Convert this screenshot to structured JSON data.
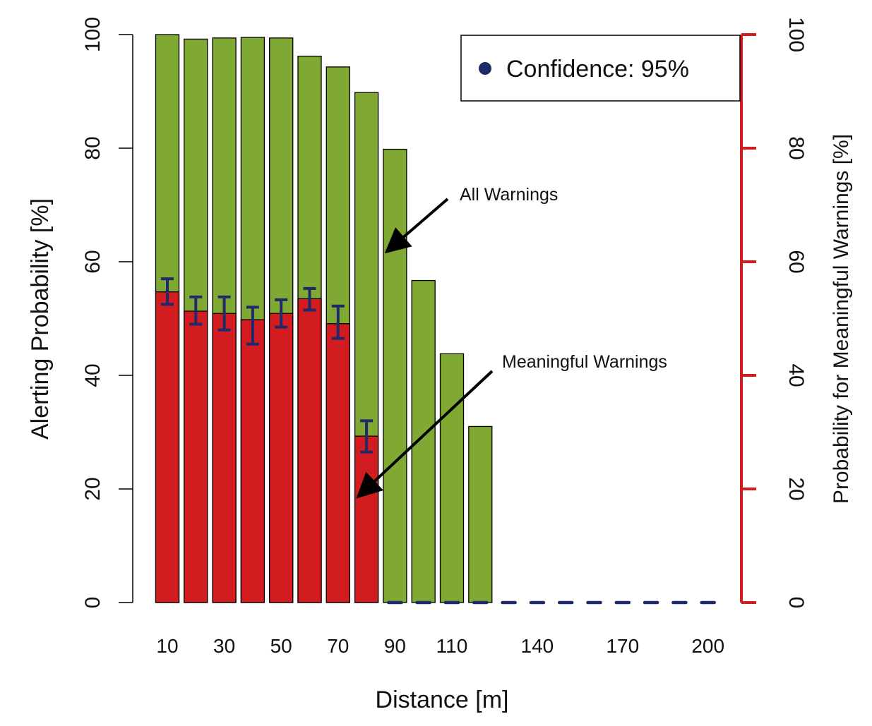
{
  "chart_data": {
    "type": "bar",
    "xlabel": "Distance [m]",
    "ylabel": "Alerting Probability [%]",
    "ylabel_right": "Probability for Meaningful Warnings [%]",
    "ylim": [
      0,
      100
    ],
    "yticks": [
      0,
      20,
      40,
      60,
      80,
      100
    ],
    "x_tick_labels": [
      "10",
      "30",
      "50",
      "70",
      "90",
      "110",
      "140",
      "170",
      "200"
    ],
    "x_tick_categories": [
      10,
      30,
      50,
      70,
      90,
      110,
      140,
      170,
      200
    ],
    "categories": [
      10,
      20,
      30,
      40,
      50,
      60,
      70,
      80,
      90,
      100,
      110,
      120,
      130,
      140,
      150,
      160,
      170,
      180,
      190,
      200
    ],
    "series": [
      {
        "name": "All Warnings",
        "color": "#80a933",
        "values": [
          100,
          99.2,
          99.4,
          99.5,
          99.4,
          96.2,
          94.3,
          89.8,
          79.8,
          56.7,
          43.8,
          31.0,
          0,
          0,
          0,
          0,
          0,
          0,
          0,
          0
        ]
      },
      {
        "name": "Meaningful Warnings",
        "color": "#d31c20",
        "values": [
          54.7,
          51.3,
          50.9,
          49.8,
          50.9,
          53.5,
          49.1,
          29.3,
          0,
          0,
          0,
          0,
          0,
          0,
          0,
          0,
          0,
          0,
          0,
          0
        ],
        "ci_low": [
          52.5,
          49.0,
          48.0,
          45.5,
          48.5,
          51.5,
          46.5,
          26.5,
          0,
          0,
          0,
          0,
          0,
          0,
          0,
          0,
          0,
          0,
          0,
          0
        ],
        "ci_high": [
          57.0,
          53.8,
          53.8,
          52.0,
          53.3,
          55.3,
          52.2,
          32.0,
          0,
          0,
          0,
          0,
          0,
          0,
          0,
          0,
          0,
          0,
          0,
          0
        ]
      }
    ],
    "legend": {
      "label": "Confidence: 95%",
      "position": "top-right",
      "marker_color": "#1f2a6b"
    },
    "annotations": [
      {
        "text": "All Warnings",
        "target_category": 90,
        "target_value": 62
      },
      {
        "text": "Meaningful Warnings",
        "target_category": 80,
        "target_value": 19
      }
    ],
    "right_axis_color": "#d31c20",
    "errorbar_color": "#1f2a6b"
  }
}
